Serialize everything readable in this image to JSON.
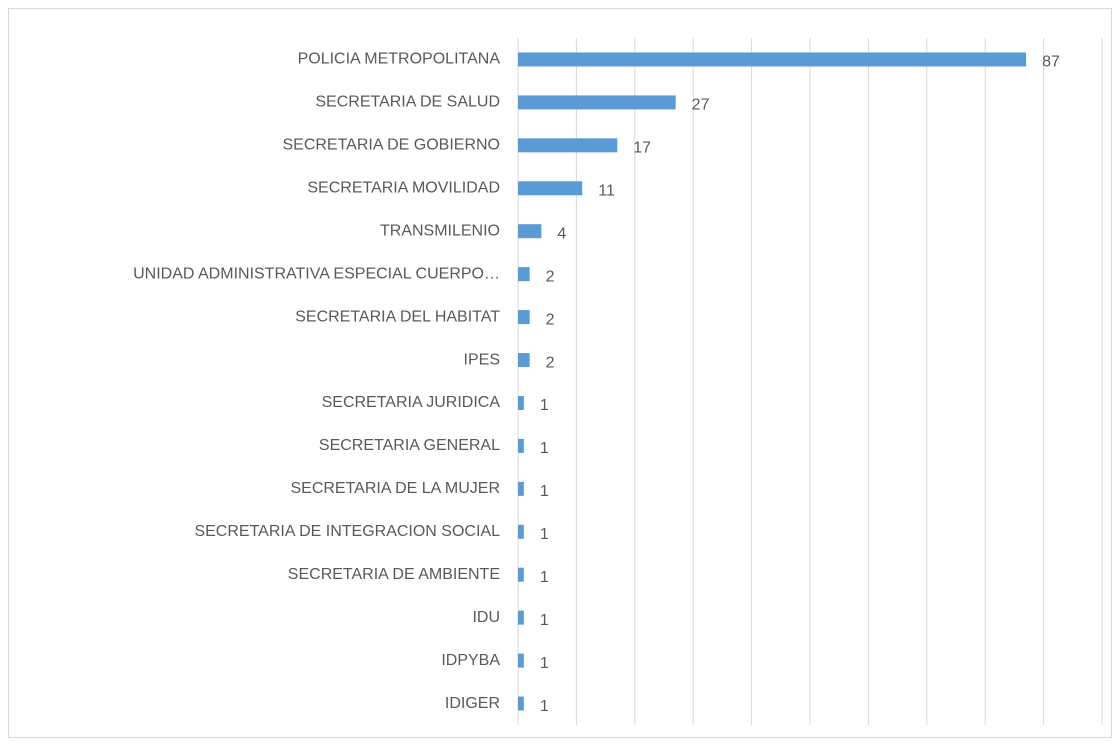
{
  "chart_data": {
    "type": "bar",
    "orientation": "horizontal",
    "categories": [
      "POLICIA METROPOLITANA",
      "SECRETARIA DE SALUD",
      "SECRETARIA DE GOBIERNO",
      "SECRETARIA MOVILIDAD",
      "TRANSMILENIO",
      "UNIDAD ADMINISTRATIVA ESPECIAL CUERPO…",
      "SECRETARIA DEL HABITAT",
      "IPES",
      "SECRETARIA JURIDICA",
      "SECRETARIA GENERAL",
      "SECRETARIA DE LA MUJER",
      "SECRETARIA DE INTEGRACION SOCIAL",
      "SECRETARIA DE AMBIENTE",
      "IDU",
      "IDPYBA",
      "IDIGER"
    ],
    "values": [
      87,
      27,
      17,
      11,
      4,
      2,
      2,
      2,
      1,
      1,
      1,
      1,
      1,
      1,
      1,
      1
    ],
    "color": "#5b9bd5",
    "xlim": [
      0,
      100
    ],
    "xticks": [
      0,
      10,
      20,
      30,
      40,
      50,
      60,
      70,
      80,
      90,
      100
    ],
    "grid": true
  }
}
